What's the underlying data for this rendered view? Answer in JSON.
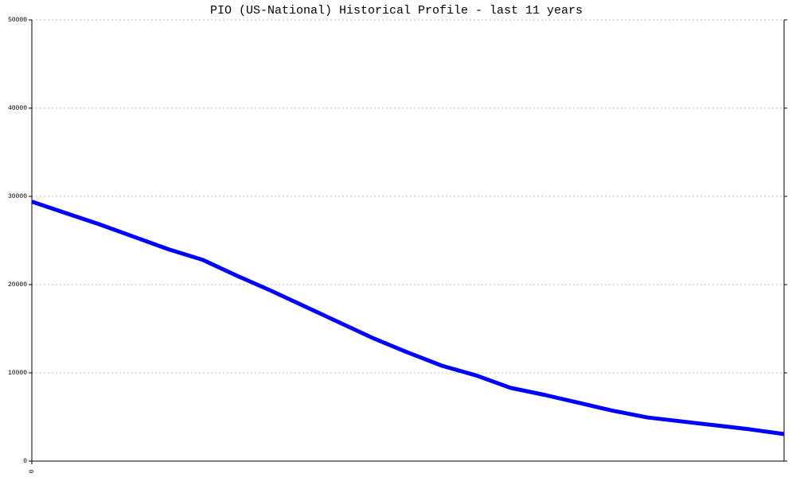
{
  "chart_data": {
    "type": "line",
    "title": "PIO (US-National) Historical Profile - last 11 years",
    "x": [
      0,
      1,
      2,
      3,
      4,
      5,
      6,
      7,
      8,
      9,
      10,
      11,
      12,
      13,
      14,
      15,
      16,
      17,
      18,
      19,
      20,
      21,
      22
    ],
    "series": [
      {
        "color": "#0000ff",
        "values": [
          29400,
          28100,
          26800,
          25400,
          24000,
          22800,
          21000,
          19300,
          17500,
          15700,
          13900,
          12300,
          10800,
          9700,
          8300,
          7500,
          6600,
          5700,
          4950,
          4500,
          4050,
          3600,
          3060
        ]
      }
    ],
    "xlim": [
      0,
      22
    ],
    "xticks": [
      0
    ],
    "ylim": [
      0,
      50000
    ],
    "yticks": [
      0,
      10000,
      20000,
      30000,
      40000,
      50000
    ],
    "grid": true
  }
}
